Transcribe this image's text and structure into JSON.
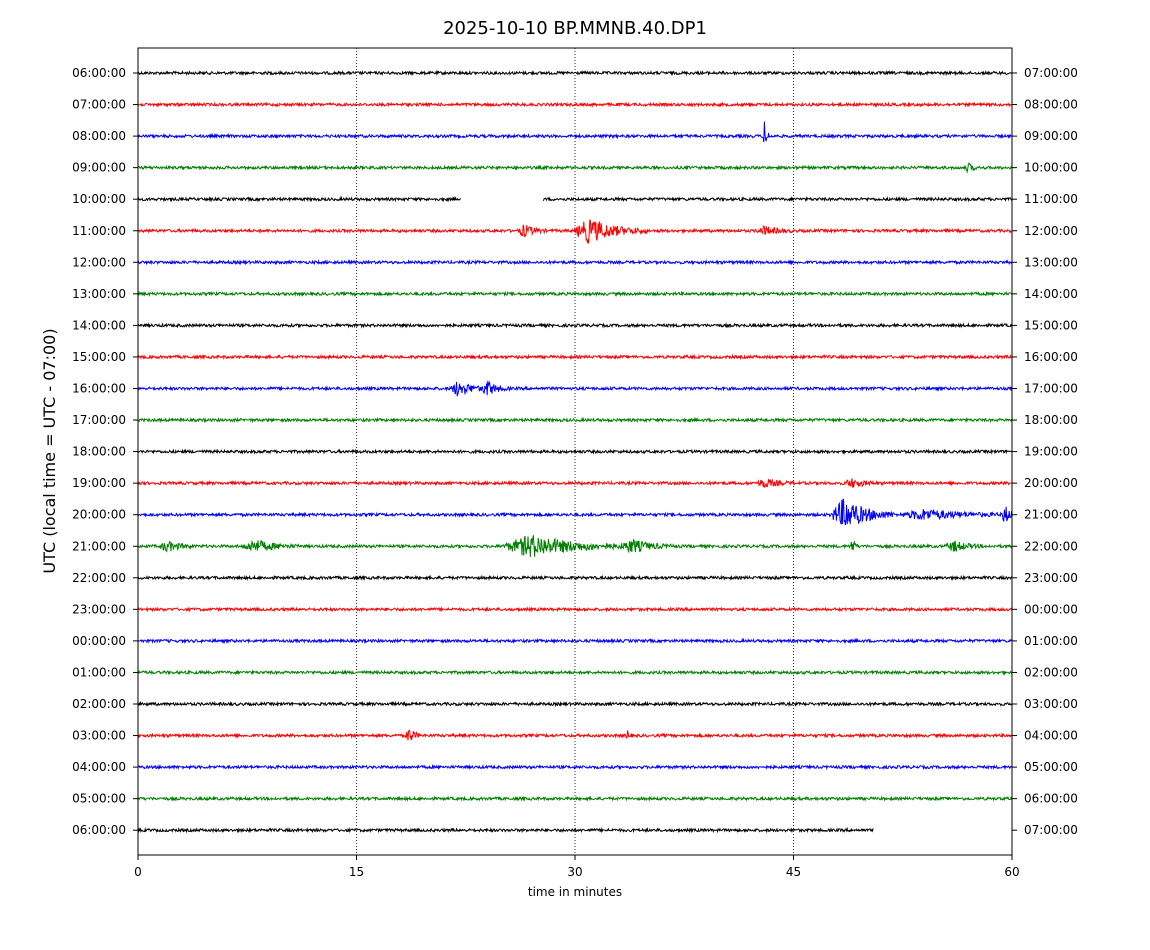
{
  "chart_data": {
    "type": "line",
    "title": "2025-10-10 BP.MMNB.40.DP1",
    "xlabel": "time in minutes",
    "ylabel": "UTC (local time = UTC - 07:00)",
    "xlim": [
      0,
      60
    ],
    "x_ticks": [
      0,
      15,
      30,
      45,
      60
    ],
    "grid": "vertical dotted at 15, 30, 45",
    "colors_cycle": [
      "#000000",
      "#ff0000",
      "#0000ff",
      "#008000"
    ],
    "rows": [
      {
        "label_left": "06:00:00",
        "label_right": "07:00:00",
        "color": "#000000",
        "end": 60,
        "events": []
      },
      {
        "label_left": "07:00:00",
        "label_right": "08:00:00",
        "color": "#ff0000",
        "end": 60,
        "events": []
      },
      {
        "label_left": "08:00:00",
        "label_right": "09:00:00",
        "color": "#0000ff",
        "end": 60,
        "events": [
          {
            "t": 43.0,
            "amp": 14,
            "dur": 0.4
          }
        ]
      },
      {
        "label_left": "09:00:00",
        "label_right": "10:00:00",
        "color": "#008000",
        "end": 60,
        "events": [
          {
            "t": 57.0,
            "amp": 5,
            "dur": 0.6
          }
        ]
      },
      {
        "label_left": "10:00:00",
        "label_right": "11:00:00",
        "color": "#000000",
        "end": 60,
        "gap": [
          22.2,
          27.8
        ],
        "events": []
      },
      {
        "label_left": "11:00:00",
        "label_right": "12:00:00",
        "color": "#ff0000",
        "end": 60,
        "events": [
          {
            "t": 26.5,
            "amp": 6,
            "dur": 1.5
          },
          {
            "t": 31.0,
            "amp": 12,
            "dur": 4
          },
          {
            "t": 43.0,
            "amp": 4,
            "dur": 2
          }
        ]
      },
      {
        "label_left": "12:00:00",
        "label_right": "13:00:00",
        "color": "#0000ff",
        "end": 60,
        "events": []
      },
      {
        "label_left": "13:00:00",
        "label_right": "14:00:00",
        "color": "#008000",
        "end": 60,
        "events": []
      },
      {
        "label_left": "14:00:00",
        "label_right": "15:00:00",
        "color": "#000000",
        "end": 60,
        "events": []
      },
      {
        "label_left": "15:00:00",
        "label_right": "16:00:00",
        "color": "#ff0000",
        "end": 60,
        "events": []
      },
      {
        "label_left": "16:00:00",
        "label_right": "17:00:00",
        "color": "#0000ff",
        "end": 60,
        "events": [
          {
            "t": 22.0,
            "amp": 8,
            "dur": 2
          },
          {
            "t": 24.0,
            "amp": 7,
            "dur": 1.5
          }
        ]
      },
      {
        "label_left": "17:00:00",
        "label_right": "18:00:00",
        "color": "#008000",
        "end": 60,
        "events": []
      },
      {
        "label_left": "18:00:00",
        "label_right": "19:00:00",
        "color": "#000000",
        "end": 60,
        "events": []
      },
      {
        "label_left": "19:00:00",
        "label_right": "20:00:00",
        "color": "#ff0000",
        "end": 60,
        "events": [
          {
            "t": 43.0,
            "amp": 4,
            "dur": 2
          },
          {
            "t": 49.0,
            "amp": 4,
            "dur": 2
          }
        ]
      },
      {
        "label_left": "20:00:00",
        "label_right": "21:00:00",
        "color": "#0000ff",
        "end": 60,
        "events": [
          {
            "t": 48.5,
            "amp": 16,
            "dur": 3.5
          },
          {
            "t": 54.0,
            "amp": 5,
            "dur": 6
          },
          {
            "t": 59.5,
            "amp": 9,
            "dur": 0.8
          }
        ]
      },
      {
        "label_left": "21:00:00",
        "label_right": "22:00:00",
        "color": "#008000",
        "end": 60,
        "events": [
          {
            "t": 27.0,
            "amp": 11,
            "dur": 7
          },
          {
            "t": 8.0,
            "amp": 6,
            "dur": 3
          },
          {
            "t": 2.0,
            "amp": 5,
            "dur": 2
          },
          {
            "t": 34.0,
            "amp": 6,
            "dur": 3
          },
          {
            "t": 49.0,
            "amp": 10,
            "dur": 0.4
          },
          {
            "t": 56.0,
            "amp": 5,
            "dur": 2
          }
        ]
      },
      {
        "label_left": "22:00:00",
        "label_right": "23:00:00",
        "color": "#000000",
        "end": 60,
        "events": []
      },
      {
        "label_left": "23:00:00",
        "label_right": "00:00:00",
        "color": "#ff0000",
        "end": 60,
        "events": []
      },
      {
        "label_left": "00:00:00",
        "label_right": "01:00:00",
        "color": "#0000ff",
        "end": 60,
        "events": []
      },
      {
        "label_left": "01:00:00",
        "label_right": "02:00:00",
        "color": "#008000",
        "end": 60,
        "events": []
      },
      {
        "label_left": "02:00:00",
        "label_right": "03:00:00",
        "color": "#000000",
        "end": 60,
        "events": []
      },
      {
        "label_left": "03:00:00",
        "label_right": "04:00:00",
        "color": "#ff0000",
        "end": 60,
        "events": [
          {
            "t": 18.6,
            "amp": 8,
            "dur": 0.8
          },
          {
            "t": 33.6,
            "amp": 6,
            "dur": 0.3
          }
        ]
      },
      {
        "label_left": "04:00:00",
        "label_right": "05:00:00",
        "color": "#0000ff",
        "end": 60,
        "events": []
      },
      {
        "label_left": "05:00:00",
        "label_right": "06:00:00",
        "color": "#008000",
        "end": 60,
        "events": []
      },
      {
        "label_left": "06:00:00",
        "label_right": "07:00:00",
        "color": "#000000",
        "end": 50.5,
        "events": []
      }
    ]
  }
}
